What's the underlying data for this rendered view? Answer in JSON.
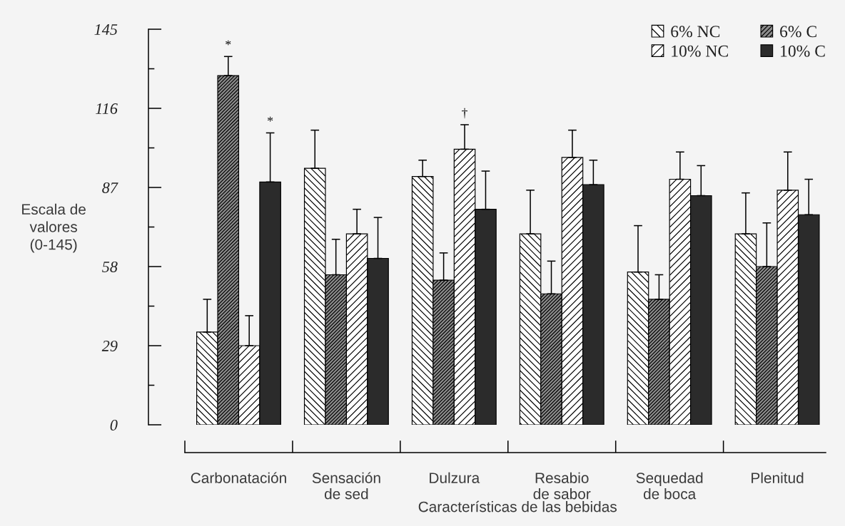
{
  "chart_data": {
    "type": "bar",
    "xlabel": "Características de las bebidas",
    "ylabel": "Escala de\nvalores\n(0-145)",
    "categories": [
      "Carbonatación",
      "Sensación\nde sed",
      "Dulzura",
      "Resabio\nde sabor",
      "Sequedad\nde boca",
      "Plenitud"
    ],
    "series": [
      {
        "name": "6% NC",
        "color": "#ffffff",
        "values": [
          34,
          94,
          91,
          70,
          56,
          70
        ],
        "errors": [
          [
            34,
            46
          ],
          [
            94,
            108
          ],
          [
            91,
            97
          ],
          [
            70,
            86
          ],
          [
            56,
            73
          ],
          [
            70,
            85
          ]
        ]
      },
      {
        "name": "6% C",
        "color": "#8c8c8c",
        "values": [
          128,
          55,
          53,
          48,
          46,
          58
        ],
        "errors": [
          [
            128,
            135
          ],
          [
            55,
            68
          ],
          [
            53,
            63
          ],
          [
            48,
            60
          ],
          [
            46,
            55
          ],
          [
            58,
            74
          ]
        ]
      },
      {
        "name": "10% NC",
        "color": "#ffffff",
        "values": [
          29,
          70,
          101,
          98,
          90,
          86
        ],
        "errors": [
          [
            29,
            40
          ],
          [
            70,
            79
          ],
          [
            101,
            110
          ],
          [
            98,
            108
          ],
          [
            90,
            100
          ],
          [
            86,
            100
          ]
        ]
      },
      {
        "name": "10% C",
        "color": "#2b2b2b",
        "values": [
          89,
          61,
          79,
          88,
          84,
          77
        ],
        "errors": [
          [
            89,
            107
          ],
          [
            61,
            76
          ],
          [
            79,
            93
          ],
          [
            88,
            97
          ],
          [
            84,
            95
          ],
          [
            77,
            90
          ]
        ]
      }
    ],
    "ylim": [
      0,
      145
    ],
    "yticks": [
      0,
      29,
      58,
      87,
      116,
      145
    ],
    "legend": "top right",
    "annotations": [
      {
        "text": "*",
        "x": "Carbonatación",
        "y": 128
      },
      {
        "text": "*",
        "x": "Carbonatación",
        "y": 107
      },
      {
        "text": "†",
        "x": "Dulzura",
        "y": 101
      }
    ]
  }
}
